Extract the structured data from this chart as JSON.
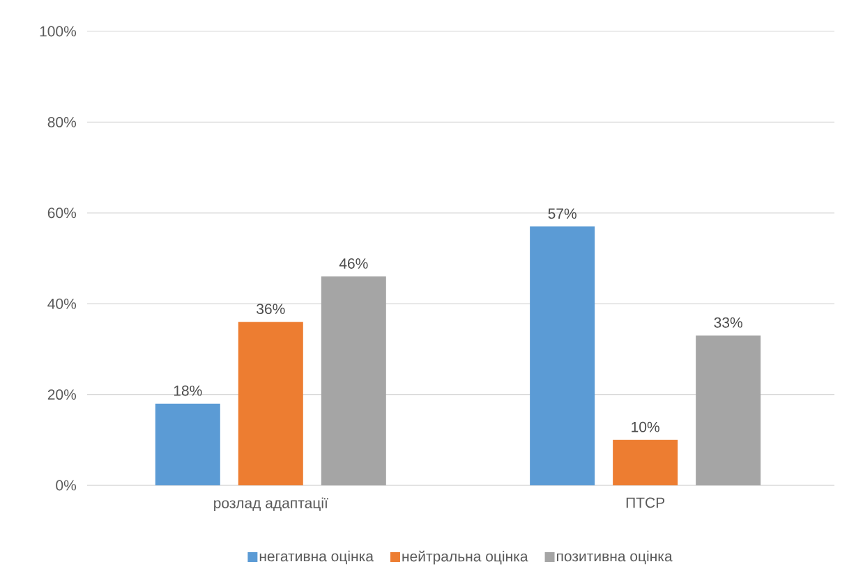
{
  "chart_data": {
    "type": "bar",
    "categories": [
      "розлад адаптації",
      "ПТСР"
    ],
    "series": [
      {
        "name": "негативна оцінка",
        "color": "#5b9bd5",
        "values": [
          18,
          57
        ],
        "value_labels": [
          "18%",
          "57%"
        ]
      },
      {
        "name": "нейтральна оцінка",
        "color": "#ed7d31",
        "values": [
          36,
          10
        ],
        "value_labels": [
          "36%",
          "10%"
        ]
      },
      {
        "name": "позитивна оцінка",
        "color": "#a5a5a5",
        "values": [
          46,
          33
        ],
        "value_labels": [
          "46%",
          "33%"
        ]
      }
    ],
    "ylim": [
      0,
      100
    ],
    "yticks": [
      {
        "value": 0,
        "label": "0%"
      },
      {
        "value": 20,
        "label": "20%"
      },
      {
        "value": 40,
        "label": "40%"
      },
      {
        "value": 60,
        "label": "60%"
      },
      {
        "value": 80,
        "label": "80%"
      },
      {
        "value": 100,
        "label": "100%"
      }
    ],
    "grid": "y",
    "legend": "bottom"
  }
}
